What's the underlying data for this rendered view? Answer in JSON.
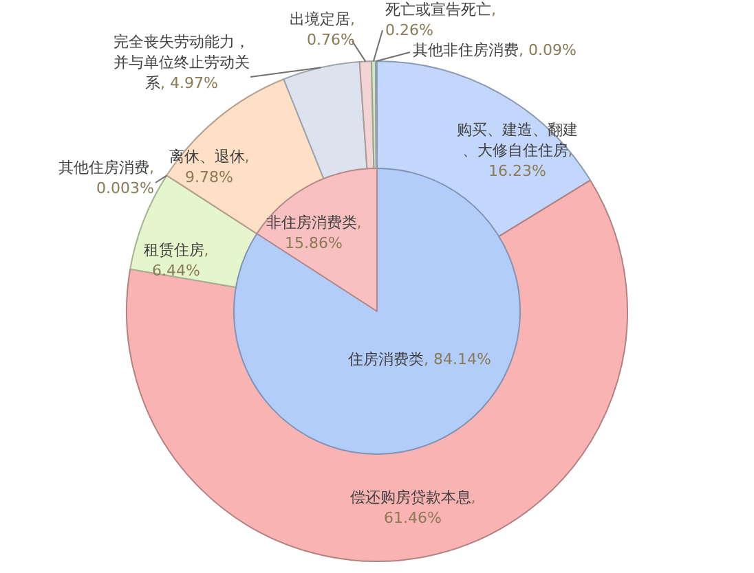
{
  "chart_data": [
    {
      "type": "pie",
      "categories": [
        "住房消费类",
        "非住房消费类"
      ],
      "values": [
        84.14,
        15.86
      ],
      "value_labels": [
        ", 84.14%",
        ", 15.86%"
      ],
      "colors": [
        "#b3cdfa",
        "#f8c0c0"
      ]
    },
    {
      "type": "donut",
      "categories": [
        "购买、建造、翻建、大修自住住房",
        "偿还购房贷款本息",
        "租赁住房",
        "其他住房消费",
        "离休、退休",
        "完全丧失劳动能力，并与单位终止劳动关系",
        "出境定居",
        "死亡或宣告死亡",
        "其他非住房消费"
      ],
      "values": [
        16.23,
        61.46,
        6.44,
        0.003,
        9.78,
        4.97,
        0.76,
        0.26,
        0.09
      ],
      "value_labels": [
        ", 16.23%",
        ", 61.46%",
        ", 6.44%",
        ", 0.003%",
        ", 9.78%",
        ", 4.97%",
        ", 0.76%",
        ", 0.26%",
        ", 0.09%"
      ],
      "colors": [
        "#c2d7fb",
        "#f9b3b3",
        "#e6f6cc",
        "#f4c9c9",
        "#fde0c6",
        "#dde3ee",
        "#f3d4d4",
        "#d6e6c2",
        "#c8dcf3"
      ]
    }
  ]
}
